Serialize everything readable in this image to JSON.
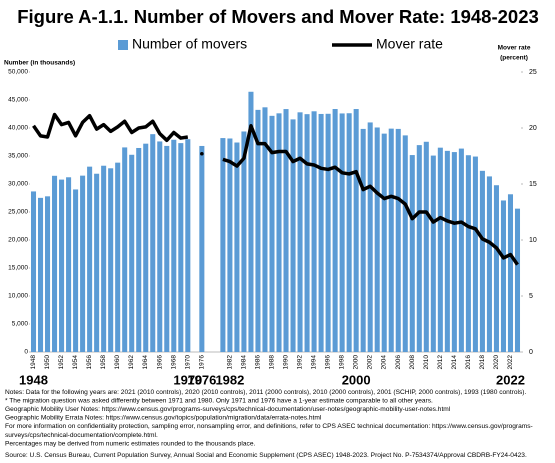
{
  "chart_data": {
    "type": "bar-line",
    "title": "Figure A-1.1. Number of Movers and Mover Rate: 1948-2023",
    "y_label": "Number (in thousands)",
    "y2_label": [
      "Mover rate",
      "(percent)"
    ],
    "categories": [
      "1948",
      null,
      "1950",
      null,
      "1952",
      null,
      "1954",
      null,
      "1956",
      null,
      "1958",
      null,
      "1960",
      null,
      "1962",
      null,
      "1964",
      null,
      "1966",
      null,
      "1968",
      null,
      "1970",
      null,
      "1976",
      null,
      null,
      null,
      "1982",
      null,
      "1984",
      null,
      "1986",
      null,
      "1988",
      null,
      "1990",
      null,
      "1992",
      null,
      "1994",
      null,
      "1996",
      null,
      "1998",
      null,
      "2000",
      null,
      "2002",
      null,
      "2004",
      null,
      "2006",
      null,
      "2008",
      null,
      "2010",
      null,
      "2012",
      null,
      "2014",
      null,
      "2016",
      null,
      "2018",
      null,
      "2020",
      null,
      "2022",
      null
    ],
    "series": [
      {
        "name": "Number of movers",
        "type": "bar",
        "color": "#5b9bd5",
        "values": [
          28672,
          27526,
          27800,
          31464,
          30786,
          31200,
          29027,
          31492,
          33098,
          31834,
          33263,
          32804,
          33811,
          36533,
          35218,
          36432,
          37200,
          38900,
          37600,
          36800,
          37900,
          37300,
          38000,
          null,
          36793,
          null,
          null,
          38200,
          38127,
          37408,
          39379,
          46470,
          43237,
          43693,
          42174,
          42620,
          43381,
          41539,
          42800,
          42472,
          42983,
          42507,
          42537,
          43391,
          42600,
          42636,
          43388,
          39837,
          40993,
          40093,
          38995,
          39888,
          39837,
          38681,
          35167,
          36942,
          37540,
          35075,
          36488,
          35918,
          35700,
          36324,
          35138,
          34902,
          32352,
          31356,
          29781,
          27059,
          28165,
          25599
        ]
      },
      {
        "name": "Mover rate",
        "type": "line",
        "axis": "y2",
        "color": "#000000",
        "values": [
          20.2,
          19.3,
          19.2,
          21.2,
          20.3,
          20.5,
          19.3,
          20.5,
          21.1,
          19.9,
          20.3,
          19.7,
          20.1,
          20.6,
          19.6,
          20.0,
          20.1,
          20.6,
          19.5,
          18.9,
          19.6,
          19.1,
          19.2,
          null,
          17.7,
          null,
          null,
          17.2,
          17.0,
          16.6,
          17.3,
          20.2,
          18.6,
          18.6,
          17.8,
          17.9,
          17.9,
          17.0,
          17.3,
          16.8,
          16.7,
          16.4,
          16.3,
          16.5,
          16.0,
          15.9,
          16.1,
          14.5,
          14.8,
          14.2,
          13.7,
          13.9,
          13.7,
          13.2,
          11.9,
          12.5,
          12.5,
          11.6,
          12.0,
          11.7,
          11.5,
          11.6,
          11.2,
          11.0,
          10.1,
          9.8,
          9.3,
          8.4,
          8.7,
          7.8
        ]
      }
    ],
    "ylim": [
      0,
      50000
    ],
    "yticks": [
      0,
      {
        "value": 5000,
        "label": "5,000"
      },
      {
        "value": 10000,
        "label": "10,000"
      },
      {
        "value": 15000,
        "label": "15,000"
      },
      {
        "value": 20000,
        "label": "20,000"
      },
      {
        "value": 25000,
        "label": "25,000"
      },
      {
        "value": 30000,
        "label": "30,000"
      },
      {
        "value": 35000,
        "label": "35,000"
      },
      {
        "value": 40000,
        "label": "40,000"
      },
      {
        "value": 45000,
        "label": "45,000"
      },
      {
        "value": 50000,
        "label": "50,000"
      }
    ],
    "y2lim": [
      0,
      25
    ],
    "y2ticks": [
      0,
      5,
      10,
      15,
      20,
      25
    ],
    "highlight_labels": [
      "1948",
      "1970",
      "1976",
      "1982",
      "2000",
      "2022"
    ],
    "notes": [
      "Notes: Data for the following years are: 2021 (2010 controls), 2020 (2010 controls), 2011 (2000 controls), 2010 (2000 controls), 2001 (SCHIP, 2000 controls), 1993 (1980 controls).",
      "* The migration question was asked differently between 1971 and 1980. Only 1971 and 1976 have a 1-year estimate comparable to all other years.",
      "Geographic Mobility User Notes: https://www.census.gov/programs-surveys/cps/technical-documentation/user-notes/geographic-mobility-user-notes.html",
      "Geographic Mobility Errata Notes: https://www.census.gov/topics/population/migration/data/errata-notes.html",
      "For more information on confidentiality protection, sampling error, nonsampling error, and definitions, refer to CPS ASEC technical documentation: https://www.census.gov/programs-",
      "surveys/cps/technical-documentation/complete.html.",
      "Percentages may be derived from numeric estimates rounded to the thousands place."
    ],
    "source": "Source: U.S. Census Bureau, Current Population Survey, Annual Social and Economic Supplement  (CPS ASEC) 1948-2023. Project No. P-7534374/Approval CBDRB-FY24-0423."
  }
}
